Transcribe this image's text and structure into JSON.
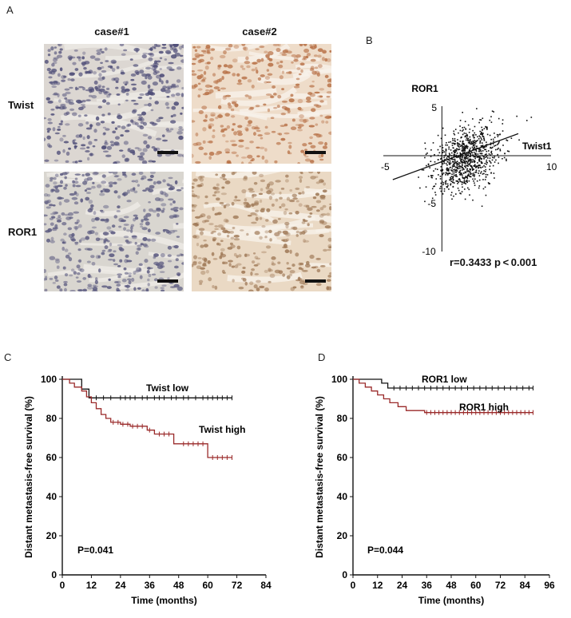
{
  "panel_a": {
    "label": "A",
    "col_headers": [
      "case#1",
      "case#2"
    ],
    "row_headers": [
      "Twist",
      "ROR1"
    ],
    "images": [
      {
        "name": "case1-twist",
        "stain": "weak",
        "bg": "#dcd7d2",
        "cell": "#4f4e78"
      },
      {
        "name": "case2-twist",
        "stain": "strong",
        "bg": "#eedcc9",
        "cell": "#b87248"
      },
      {
        "name": "case1-ror1",
        "stain": "weak",
        "bg": "#d9d6d0",
        "cell": "#5b5a80"
      },
      {
        "name": "case2-ror1",
        "stain": "moderate",
        "bg": "#ead9c4",
        "cell": "#a07a58"
      }
    ]
  },
  "panel_b": {
    "label": "B",
    "stat": "r=0.3433 p < 0.001"
  },
  "panel_c": {
    "label": "C"
  },
  "panel_d": {
    "label": "D"
  },
  "chart_data": [
    {
      "type": "scatter",
      "panel": "B",
      "xlabel": "Twist1",
      "ylabel": "ROR1",
      "xlim": [
        -5,
        10
      ],
      "ylim": [
        -10,
        5
      ],
      "x_ticks": [
        -5,
        10
      ],
      "y_ticks": [
        5,
        -5,
        -10
      ],
      "n_points": 900,
      "x_mean": 2.2,
      "x_sd": 1.6,
      "y_mean": -0.3,
      "y_sd": 1.8,
      "regression": {
        "x": [
          -4.5,
          7.0
        ],
        "y": [
          -2.5,
          2.3
        ]
      },
      "stat": "r=0.3433 p < 0.001"
    },
    {
      "type": "line",
      "panel": "C",
      "xlabel": "Time (months)",
      "ylabel": "Distant metastasis-free survival (%)",
      "xlim": [
        0,
        84
      ],
      "ylim": [
        0,
        100
      ],
      "x_ticks": [
        0,
        12,
        24,
        36,
        48,
        60,
        72,
        84
      ],
      "y_ticks": [
        0,
        20,
        40,
        60,
        80,
        100
      ],
      "pvalue": "P=0.041",
      "series": [
        {
          "name": "Twist low",
          "color": "#111111",
          "steps": [
            [
              0,
              100
            ],
            [
              8,
              100
            ],
            [
              8,
              95
            ],
            [
              11,
              95
            ],
            [
              11,
              90.5
            ],
            [
              70,
              90.5
            ]
          ],
          "censors": [
            14,
            17,
            20,
            24,
            26,
            28,
            30,
            33,
            35,
            38,
            40,
            42,
            45,
            47,
            50,
            52,
            55,
            58,
            60,
            62,
            64,
            66,
            68,
            70
          ]
        },
        {
          "name": "Twist high",
          "color": "#9a2a2a",
          "steps": [
            [
              0,
              100
            ],
            [
              3,
              100
            ],
            [
              3,
              98
            ],
            [
              5,
              98
            ],
            [
              5,
              96
            ],
            [
              8,
              96
            ],
            [
              8,
              94
            ],
            [
              10,
              94
            ],
            [
              10,
              91
            ],
            [
              12,
              91
            ],
            [
              12,
              88
            ],
            [
              14,
              88
            ],
            [
              14,
              85
            ],
            [
              16,
              85
            ],
            [
              16,
              82
            ],
            [
              18,
              82
            ],
            [
              18,
              80
            ],
            [
              20,
              80
            ],
            [
              20,
              78
            ],
            [
              24,
              78
            ],
            [
              24,
              77
            ],
            [
              28,
              77
            ],
            [
              28,
              76
            ],
            [
              35,
              76
            ],
            [
              35,
              74
            ],
            [
              38,
              74
            ],
            [
              38,
              72
            ],
            [
              46,
              72
            ],
            [
              46,
              67
            ],
            [
              60,
              67
            ],
            [
              60,
              60
            ],
            [
              70,
              60
            ]
          ],
          "censors": [
            21,
            23,
            25,
            27,
            29,
            31,
            33,
            36,
            40,
            42,
            44,
            50,
            52,
            54,
            56,
            58,
            62,
            64,
            66,
            68,
            70
          ]
        }
      ]
    },
    {
      "type": "line",
      "panel": "D",
      "xlabel": "Time (months)",
      "ylabel": "Distant metastasis-free survival (%)",
      "xlim": [
        0,
        96
      ],
      "ylim": [
        0,
        100
      ],
      "x_ticks": [
        0,
        12,
        24,
        36,
        48,
        60,
        72,
        84,
        96
      ],
      "y_ticks": [
        0,
        20,
        40,
        60,
        80,
        100
      ],
      "pvalue": "P=0.044",
      "series": [
        {
          "name": "ROR1 low",
          "color": "#111111",
          "steps": [
            [
              0,
              100
            ],
            [
              14,
              100
            ],
            [
              14,
              98
            ],
            [
              17,
              98
            ],
            [
              17,
              95.5
            ],
            [
              88,
              95.5
            ]
          ],
          "censors": [
            20,
            23,
            26,
            29,
            32,
            35,
            38,
            41,
            44,
            47,
            50,
            53,
            56,
            59,
            62,
            65,
            68,
            71,
            74,
            77,
            80,
            83,
            86,
            88
          ]
        },
        {
          "name": "ROR1 high",
          "color": "#9a2a2a",
          "steps": [
            [
              0,
              100
            ],
            [
              3,
              100
            ],
            [
              3,
              98
            ],
            [
              6,
              98
            ],
            [
              6,
              96
            ],
            [
              9,
              96
            ],
            [
              9,
              94
            ],
            [
              12,
              94
            ],
            [
              12,
              92
            ],
            [
              15,
              92
            ],
            [
              15,
              90
            ],
            [
              18,
              90
            ],
            [
              18,
              88
            ],
            [
              22,
              88
            ],
            [
              22,
              86
            ],
            [
              26,
              86
            ],
            [
              26,
              84
            ],
            [
              35,
              84
            ],
            [
              35,
              83
            ],
            [
              88,
              83
            ]
          ],
          "censors": [
            36,
            38,
            40,
            42,
            44,
            46,
            48,
            50,
            52,
            54,
            56,
            58,
            60,
            62,
            64,
            66,
            68,
            70,
            72,
            74,
            76,
            78,
            80,
            82,
            84,
            86,
            88
          ]
        }
      ]
    }
  ]
}
